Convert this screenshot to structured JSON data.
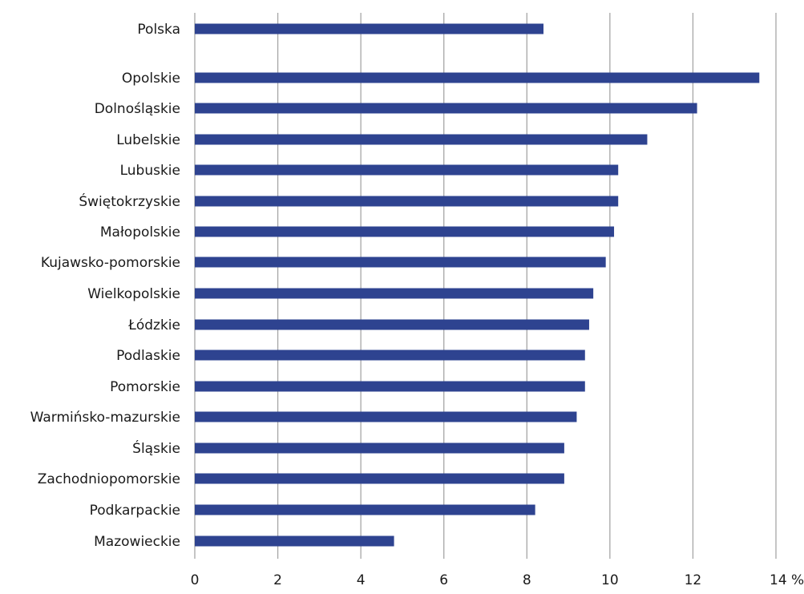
{
  "chart_data": {
    "type": "bar",
    "orientation": "horizontal",
    "categories": [
      "Polska",
      "Opolskie",
      "Dolnośląskie",
      "Lubelskie",
      "Lubuskie",
      "Świętokrzyskie",
      "Małopolskie",
      "Kujawsko-pomorskie",
      "Wielkopolskie",
      "Łódzkie",
      "Podlaskie",
      "Pomorskie",
      "Warmińsko-mazurskie",
      "Śląskie",
      "Zachodniopomorskie",
      "Podkarpackie",
      "Mazowieckie"
    ],
    "values": [
      8.4,
      13.6,
      12.1,
      10.9,
      10.2,
      10.2,
      10.1,
      9.9,
      9.6,
      9.5,
      9.4,
      9.4,
      9.2,
      8.9,
      8.9,
      8.2,
      4.8
    ],
    "x_ticks": [
      "0",
      "2",
      "4",
      "6",
      "8",
      "10",
      "12",
      "14 %"
    ],
    "xlim": [
      0,
      14
    ],
    "grid": "vertical",
    "bar_color": "#2e4390",
    "grid_color": "#a6a6a6",
    "title": "",
    "xlabel": "",
    "ylabel": ""
  }
}
